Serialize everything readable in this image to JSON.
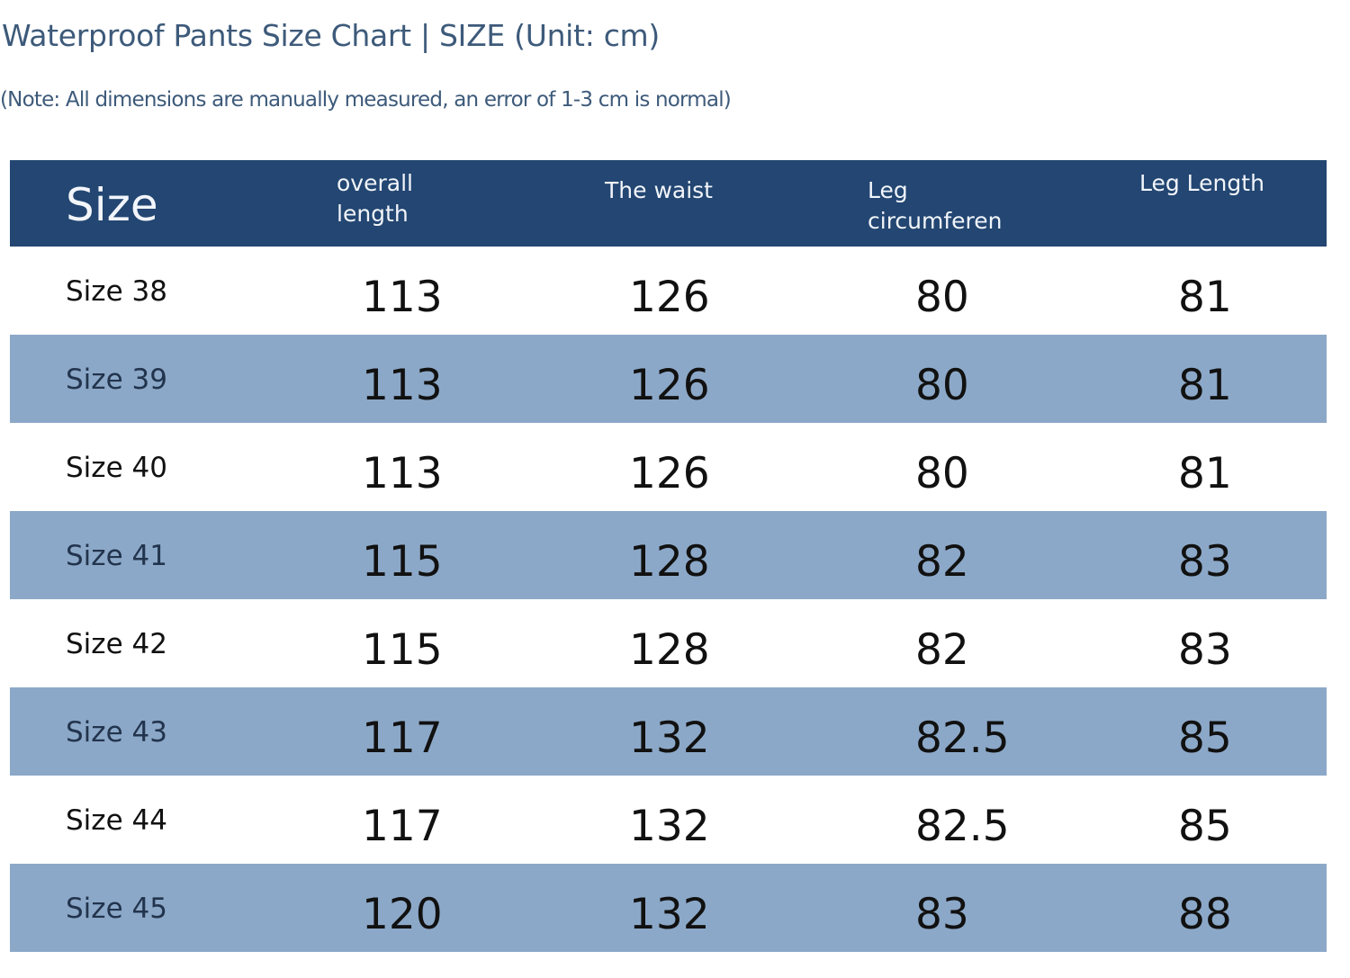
{
  "title": "Waterproof Pants Size Chart | SIZE (Unit: cm)",
  "note": "(Note: All dimensions are manually measured, an error of 1-3 cm is normal)",
  "colors": {
    "header_bg": "#234672",
    "alt_row_bg": "#8ca8c8",
    "title_text": "#3d5a7a"
  },
  "table": {
    "headers": {
      "size": "Size",
      "overall_length": "overall length",
      "waist": "The waist",
      "leg_circumference": "Leg circumferen",
      "leg_length": "Leg Length"
    },
    "rows": [
      {
        "size": "Size 38",
        "overall_length": "113",
        "waist": "126",
        "leg_circumference": "80",
        "leg_length": "81"
      },
      {
        "size": "Size 39",
        "overall_length": "113",
        "waist": "126",
        "leg_circumference": "80",
        "leg_length": "81"
      },
      {
        "size": "Size 40",
        "overall_length": "113",
        "waist": "126",
        "leg_circumference": "80",
        "leg_length": "81"
      },
      {
        "size": "Size 41",
        "overall_length": "115",
        "waist": "128",
        "leg_circumference": "82",
        "leg_length": "83"
      },
      {
        "size": "Size 42",
        "overall_length": "115",
        "waist": "128",
        "leg_circumference": "82",
        "leg_length": "83"
      },
      {
        "size": "Size 43",
        "overall_length": "117",
        "waist": "132",
        "leg_circumference": "82.5",
        "leg_length": "85"
      },
      {
        "size": "Size 44",
        "overall_length": "117",
        "waist": "132",
        "leg_circumference": "82.5",
        "leg_length": "85"
      },
      {
        "size": "Size 45",
        "overall_length": "120",
        "waist": "132",
        "leg_circumference": "83",
        "leg_length": "88"
      }
    ]
  }
}
